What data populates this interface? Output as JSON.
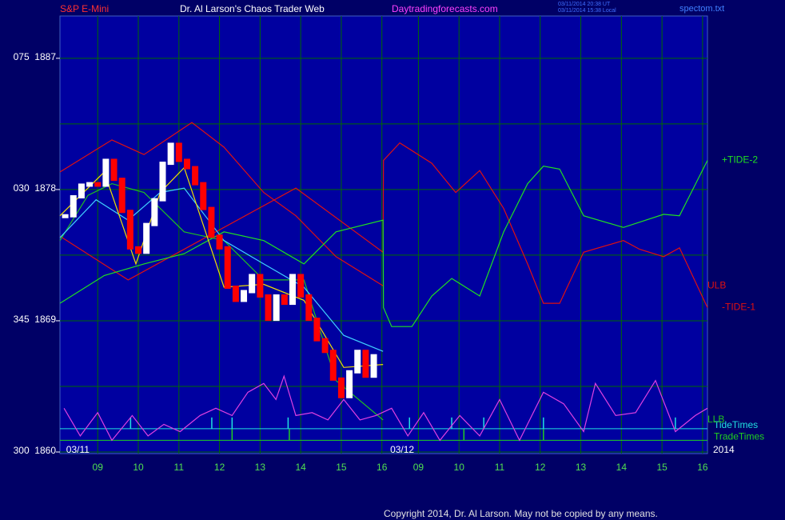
{
  "chart_data": {
    "type": "line",
    "title": "Dr. Al Larson's Chaos Trader Web",
    "instrument": "S&P E-Mini",
    "site": "Daytradingforecasts.com",
    "timestamps": [
      "03/11/2014 20:38 UT",
      "03/11/2014 15:38 Local"
    ],
    "file": "spectom.txt",
    "copyright": "Copyright 2014, Dr. Al Larson. May not be copied by any means.",
    "year": "2014",
    "xlim": [
      -0.93,
      15.02
    ],
    "ylim": [
      1860,
      1889.9
    ],
    "yticks": [
      {
        "value": 1860,
        "label": "300  1860"
      },
      {
        "value": 1869,
        "label": "345  1869"
      },
      {
        "value": 1878,
        "label": "030  1878"
      },
      {
        "value": 1887,
        "label": "075  1887"
      }
    ],
    "ygrid": [
      1864.5,
      1873.5,
      1882.5
    ],
    "xticks": [
      {
        "value": 0,
        "label": "09"
      },
      {
        "value": 1,
        "label": "10"
      },
      {
        "value": 2,
        "label": "11"
      },
      {
        "value": 3,
        "label": "12"
      },
      {
        "value": 4,
        "label": "13"
      },
      {
        "value": 5,
        "label": "14"
      },
      {
        "value": 6,
        "label": "15"
      },
      {
        "value": 7,
        "label": "16"
      },
      {
        "value": 7.9,
        "label": "09"
      },
      {
        "value": 8.9,
        "label": "10"
      },
      {
        "value": 9.9,
        "label": "11"
      },
      {
        "value": 10.9,
        "label": "12"
      },
      {
        "value": 11.9,
        "label": "13"
      },
      {
        "value": 12.9,
        "label": "14"
      },
      {
        "value": 13.9,
        "label": "15"
      },
      {
        "value": 14.9,
        "label": "16"
      }
    ],
    "day_labels": [
      {
        "value": -0.49,
        "label": "03/11"
      },
      {
        "value": 7.5,
        "label": "03/12"
      }
    ],
    "grid": true,
    "price": {
      "up_color": "#ffffff",
      "down_color": "#ff0000",
      "x": [
        -0.8,
        -0.6,
        -0.4,
        -0.2,
        0,
        0.2,
        0.4,
        0.6,
        0.8,
        1.0,
        1.2,
        1.4,
        1.6,
        1.8,
        2.0,
        2.2,
        2.4,
        2.6,
        2.8,
        3.0,
        3.2,
        3.4,
        3.6,
        3.8,
        4.0,
        4.2,
        4.4,
        4.6,
        4.8,
        5.0,
        5.2,
        5.4,
        5.6,
        5.8,
        6.0,
        6.2,
        6.4,
        6.6,
        6.8
      ],
      "values": [
        1876.2,
        1877.5,
        1878.3,
        1878.4,
        1878.3,
        1880.0,
        1878.7,
        1876.5,
        1874.0,
        1873.7,
        1875.6,
        1877.3,
        1879.8,
        1881.1,
        1880.0,
        1879.5,
        1878.4,
        1876.7,
        1874.8,
        1874.0,
        1871.3,
        1870.4,
        1871.0,
        1872.1,
        1870.7,
        1869.1,
        1870.7,
        1870.2,
        1872.1,
        1870.7,
        1869.1,
        1867.7,
        1866.9,
        1865.0,
        1863.8,
        1865.5,
        1866.9,
        1865.2,
        1866.6
      ]
    },
    "series": [
      {
        "name": "ULB",
        "color": "#e01010",
        "x": [
          -0.93,
          0.35,
          1.14,
          2.32,
          3.11,
          4.09,
          4.88,
          5.87,
          7.03
        ],
        "values": [
          1879.2,
          1881.4,
          1880.4,
          1882.6,
          1880.9,
          1877.8,
          1876.2,
          1873.4,
          1871.4
        ]
      },
      {
        "name": "-TIDE-1",
        "color": "#e01010",
        "x": [
          -0.93,
          0.75,
          2.52,
          4.88,
          7.03,
          7.04,
          7.44,
          8.23,
          8.82,
          9.41,
          10.0,
          10.59,
          10.98,
          11.38,
          11.97,
          12.95,
          13.35,
          13.94,
          14.33,
          15.02
        ],
        "values": [
          1874.8,
          1871.8,
          1874.5,
          1878.1,
          1873.7,
          1880.0,
          1881.2,
          1879.8,
          1877.8,
          1879.3,
          1876.7,
          1872.9,
          1870.2,
          1870.2,
          1873.7,
          1874.5,
          1873.9,
          1873.4,
          1874.0,
          1869.9
        ]
      },
      {
        "name": "+TIDE-2",
        "color": "#20e020",
        "x": [
          -0.93,
          0.16,
          1.14,
          2.13,
          3.11,
          4.09,
          5.08,
          5.87,
          7.03,
          7.04,
          7.24,
          7.74,
          8.23,
          8.72,
          9.41,
          10.0,
          10.59,
          10.98,
          11.38,
          11.97,
          12.95,
          13.94,
          14.33,
          15.02
        ],
        "values": [
          1870.2,
          1872.1,
          1872.9,
          1873.6,
          1875.1,
          1874.5,
          1872.9,
          1875.1,
          1875.9,
          1869.9,
          1868.6,
          1868.6,
          1870.7,
          1871.9,
          1870.7,
          1875.1,
          1878.4,
          1879.6,
          1879.4,
          1876.2,
          1875.4,
          1876.3,
          1876.2,
          1880.0
        ]
      },
      {
        "name": "LLB",
        "color": "#20c020",
        "x": [
          -0.93,
          -0.24,
          0.35,
          1.14,
          2.13,
          3.11,
          4.09,
          5.08,
          5.87,
          7.03
        ],
        "values": [
          1874.5,
          1877.6,
          1878.4,
          1877.8,
          1875.1,
          1874.5,
          1871.8,
          1871.8,
          1864.9,
          1862.2
        ]
      },
      {
        "color": "#40d0ff",
        "x": [
          -0.93,
          -0.04,
          0.75,
          1.54,
          2.13,
          3.11,
          4.09,
          5.08,
          6.06,
          7.03
        ],
        "values": [
          1874.7,
          1877.3,
          1875.9,
          1877.8,
          1878.1,
          1874.5,
          1872.9,
          1871.3,
          1868.0,
          1866.9
        ]
      },
      {
        "color": "#f0e000",
        "x": [
          -0.93,
          0.16,
          0.94,
          1.54,
          2.13,
          3.11,
          4.09,
          5.08,
          6.06,
          7.03
        ],
        "values": [
          1876.2,
          1879.2,
          1872.9,
          1877.8,
          1879.5,
          1871.3,
          1871.5,
          1870.4,
          1865.8,
          1866.0
        ]
      },
      {
        "color": "#e040e0",
        "x": [
          -0.83,
          -0.43,
          0,
          0.35,
          0.85,
          1.24,
          1.63,
          2.03,
          2.52,
          2.91,
          3.31,
          3.7,
          4.09,
          4.39,
          4.59,
          4.88,
          5.28,
          5.67,
          6.06,
          6.46,
          6.85,
          7.24,
          7.64,
          8.03,
          8.43,
          8.92,
          9.41,
          9.9,
          10.39,
          10.98,
          11.48,
          11.97,
          12.26,
          12.76,
          13.25,
          13.74,
          14.23,
          14.72,
          15.02
        ],
        "values": [
          1863.0,
          1861.1,
          1862.7,
          1860.8,
          1862.5,
          1861.1,
          1861.9,
          1861.4,
          1862.5,
          1863.0,
          1862.5,
          1864.1,
          1864.7,
          1863.6,
          1865.2,
          1862.5,
          1862.7,
          1862.2,
          1863.6,
          1862.2,
          1862.5,
          1863.0,
          1861.1,
          1862.7,
          1860.8,
          1862.5,
          1861.1,
          1863.6,
          1860.8,
          1864.1,
          1863.3,
          1861.4,
          1864.7,
          1862.5,
          1862.7,
          1864.9,
          1861.4,
          1862.5,
          1863.0
        ]
      }
    ],
    "markers": [
      {
        "name": "TideTimes",
        "color": "#20e0e0",
        "level": 1861.6,
        "times": [
          0.81,
          2.81,
          3.31,
          4.69,
          7.68,
          8.72,
          9.51,
          10.98,
          14.23
        ]
      },
      {
        "name": "TradeTimes",
        "color": "#20d020",
        "level": 1860.8,
        "times": [
          3.31,
          4.72,
          9.02,
          10.98
        ]
      }
    ]
  }
}
